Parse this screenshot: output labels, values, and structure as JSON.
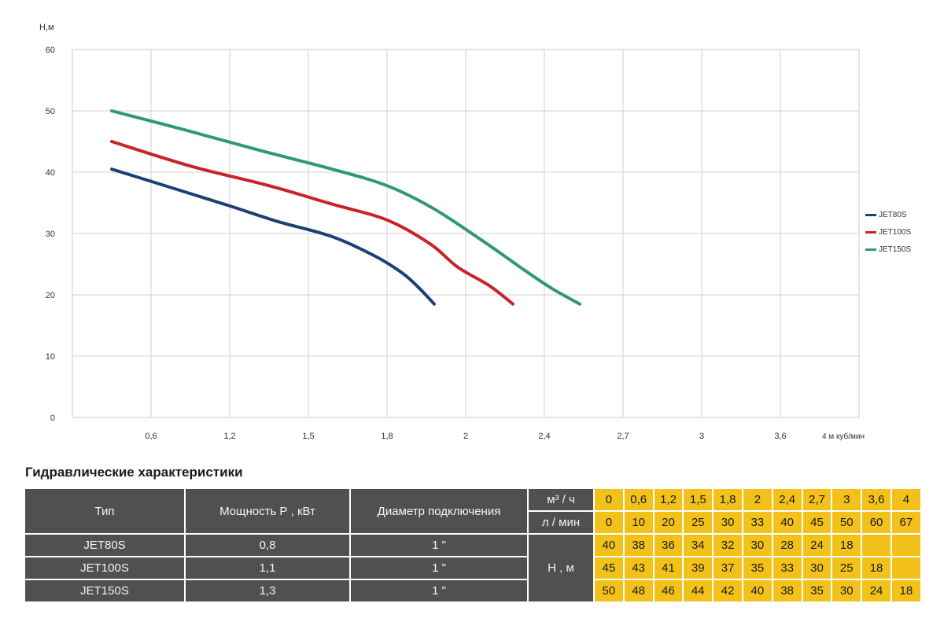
{
  "chart_data": {
    "type": "line",
    "ylabel": "Н,м",
    "ylim": [
      0,
      60
    ],
    "yticks": [
      "0",
      "10",
      "20",
      "30",
      "40",
      "50",
      "60"
    ],
    "xticks": [
      "0,6",
      "1,2",
      "1,5",
      "1,8",
      "2",
      "2,4",
      "2,7",
      "3",
      "3,6",
      "4 м куб/мин"
    ],
    "grid": true,
    "legend_position": "right",
    "series": [
      {
        "name": "JET80S",
        "color": "#1e3f73",
        "points": [
          [
            0.5,
            40.5
          ],
          [
            1.2,
            37.7
          ],
          [
            2.0,
            34.5
          ],
          [
            2.6,
            32.0
          ],
          [
            3.3,
            29.5
          ],
          [
            3.85,
            26.3
          ],
          [
            4.2,
            23.5
          ],
          [
            4.4,
            21.2
          ],
          [
            4.6,
            18.5
          ]
        ]
      },
      {
        "name": "JET100S",
        "color": "#c8222a",
        "points": [
          [
            0.5,
            45.0
          ],
          [
            1.5,
            41.0
          ],
          [
            2.5,
            37.8
          ],
          [
            3.3,
            34.8
          ],
          [
            4.0,
            32.2
          ],
          [
            4.55,
            28.3
          ],
          [
            4.9,
            24.5
          ],
          [
            5.3,
            21.5
          ],
          [
            5.6,
            18.5
          ]
        ]
      },
      {
        "name": "JET150S",
        "color": "#2f9a6a",
        "points": [
          [
            0.5,
            50.0
          ],
          [
            1.4,
            47.0
          ],
          [
            2.4,
            43.5
          ],
          [
            3.3,
            40.5
          ],
          [
            4.0,
            37.8
          ],
          [
            4.6,
            34.0
          ],
          [
            5.25,
            28.5
          ],
          [
            5.75,
            24.0
          ],
          [
            6.1,
            21.0
          ],
          [
            6.45,
            18.5
          ]
        ]
      }
    ]
  },
  "table": {
    "title": "Гидравлические характеристики",
    "headers": {
      "type": "Тип",
      "power": "Мощность Р , кВт",
      "diameter": "Диаметр подключения"
    },
    "unit_m3h": "м³ / ч",
    "unit_lmin": "л / мин",
    "unit_h": "Н , м",
    "flow_m3h": [
      "0",
      "0,6",
      "1,2",
      "1,5",
      "1,8",
      "2",
      "2,4",
      "2,7",
      "3",
      "3,6",
      "4"
    ],
    "flow_lmin": [
      "0",
      "10",
      "20",
      "25",
      "30",
      "33",
      "40",
      "45",
      "50",
      "60",
      "67"
    ],
    "rows": [
      {
        "type": "JET80S",
        "power": "0,8",
        "diameter": "1 \"",
        "heads": [
          "40",
          "38",
          "36",
          "34",
          "32",
          "30",
          "28",
          "24",
          "18",
          "",
          ""
        ]
      },
      {
        "type": "JET100S",
        "power": "1,1",
        "diameter": "1 \"",
        "heads": [
          "45",
          "43",
          "41",
          "39",
          "37",
          "35",
          "33",
          "30",
          "25",
          "18",
          ""
        ]
      },
      {
        "type": "JET150S",
        "power": "1,3",
        "diameter": "1 \"",
        "heads": [
          "50",
          "48",
          "46",
          "44",
          "42",
          "40",
          "38",
          "35",
          "30",
          "24",
          "18"
        ]
      }
    ]
  }
}
